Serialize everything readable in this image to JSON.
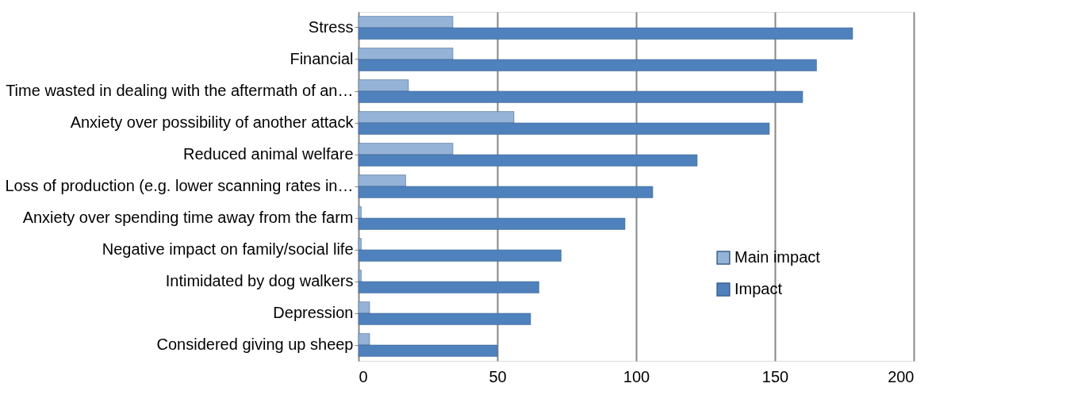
{
  "chart_data": {
    "type": "bar",
    "orientation": "horizontal",
    "categories": [
      "Stress",
      "Financial",
      "Time wasted in dealing with the aftermath of an…",
      "Anxiety over possibility of another attack",
      "Reduced animal welfare",
      "Loss of production (e.g. lower scanning rates in…",
      "Anxiety over spending time away from the farm",
      "Negative impact on family/social life",
      "Intimidated by dog walkers",
      "Depression",
      "Considered giving up sheep"
    ],
    "series": [
      {
        "name": "Main impact",
        "color": "#95b3d7",
        "values": [
          34,
          34,
          18,
          56,
          34,
          17,
          1,
          1,
          1,
          4,
          4
        ]
      },
      {
        "name": "Impact",
        "color": "#4f81bd",
        "values": [
          178,
          165,
          160,
          148,
          122,
          106,
          96,
          73,
          65,
          62,
          50
        ]
      }
    ],
    "xlim": [
      0,
      200
    ],
    "xticks": [
      0,
      50,
      100,
      150,
      200
    ],
    "grid": "x",
    "legend": "right"
  }
}
